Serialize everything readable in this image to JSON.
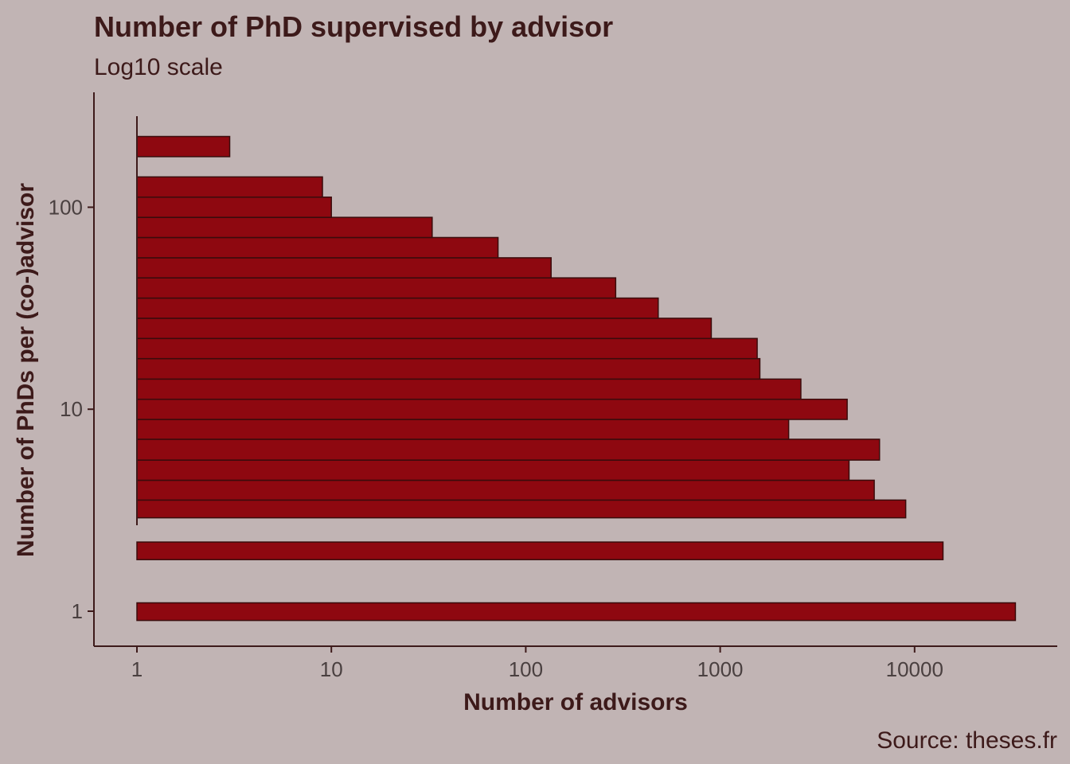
{
  "chart_data": {
    "type": "bar",
    "orientation": "horizontal",
    "title": "Number of PhD supervised by advisor",
    "subtitle": "Log10 scale",
    "xlabel": "Number of advisors",
    "ylabel": "Number of PhDs per (co-)advisor",
    "caption": "Source: theses.fr",
    "x_scale": "log10",
    "y_scale": "log10",
    "xlim": [
      0.8,
      50000
    ],
    "ylim": [
      0.6,
      350
    ],
    "x_ticks": [
      1,
      10,
      100,
      1000,
      10000
    ],
    "x_tick_labels": [
      "1",
      "10",
      "100",
      "1000",
      "10000"
    ],
    "y_ticks": [
      1,
      10,
      100
    ],
    "y_tick_labels": [
      "1",
      "10",
      "100"
    ],
    "bars": [
      {
        "y_min": 0.9,
        "y_max": 1.1,
        "value": 33000
      },
      {
        "y_min": 1.8,
        "y_max": 2.2,
        "value": 14000
      },
      {
        "y_min": 2.9,
        "y_max": 3.55,
        "value": 9000
      },
      {
        "y_min": 3.55,
        "y_max": 4.45,
        "value": 6200
      },
      {
        "y_min": 4.45,
        "y_max": 5.6,
        "value": 4600
      },
      {
        "y_min": 5.6,
        "y_max": 7.1,
        "value": 6600
      },
      {
        "y_min": 7.1,
        "y_max": 8.9,
        "value": 2250
      },
      {
        "y_min": 8.9,
        "y_max": 11.2,
        "value": 4500
      },
      {
        "y_min": 11.2,
        "y_max": 14.1,
        "value": 2600
      },
      {
        "y_min": 14.1,
        "y_max": 17.8,
        "value": 1600
      },
      {
        "y_min": 17.8,
        "y_max": 22.4,
        "value": 1550
      },
      {
        "y_min": 22.4,
        "y_max": 28.2,
        "value": 900
      },
      {
        "y_min": 28.2,
        "y_max": 35.5,
        "value": 480
      },
      {
        "y_min": 35.5,
        "y_max": 44.7,
        "value": 290
      },
      {
        "y_min": 44.7,
        "y_max": 56.2,
        "value": 135
      },
      {
        "y_min": 56.2,
        "y_max": 70.8,
        "value": 72
      },
      {
        "y_min": 70.8,
        "y_max": 89.1,
        "value": 33
      },
      {
        "y_min": 89.1,
        "y_max": 112.2,
        "value": 10
      },
      {
        "y_min": 112.2,
        "y_max": 141.3,
        "value": 9
      },
      {
        "y_min": 178,
        "y_max": 224,
        "value": 3
      }
    ],
    "colors": {
      "background": "#c1b4b4",
      "bar_fill": "#8e0810",
      "bar_stroke": "#3a0c0c",
      "text": "#3d1a1a",
      "tick_text": "#4a4040"
    }
  }
}
